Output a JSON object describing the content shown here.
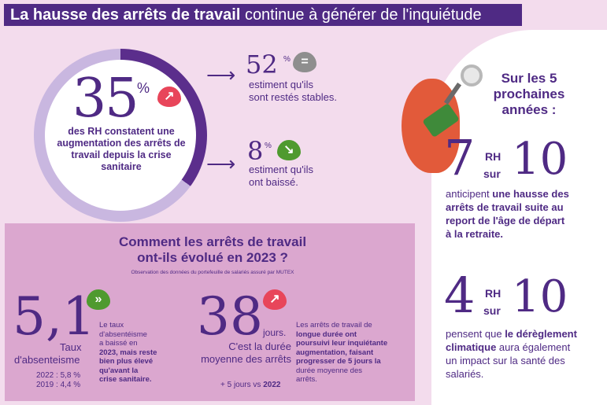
{
  "title": {
    "bold": "La hausse des arrêts de travail",
    "rest": "continue à générer de l'inquiétude"
  },
  "main_stat": {
    "value": "35",
    "unit": "%",
    "text": "des RH constatent une augmentation des arrêts de travail depuis la crise sanitaire",
    "ring_fraction": 0.35
  },
  "stable": {
    "value": "52",
    "unit": "%",
    "text_line1": "estiment qu'ils",
    "text_line2": "sont restés stables.",
    "icon": "equals-icon"
  },
  "lower": {
    "value": "8",
    "unit": "%",
    "text_line1": "estiment qu'ils",
    "text_line2": "ont baissé.",
    "icon": "arrow-down-icon"
  },
  "future": {
    "heading_line1": "Sur les 5",
    "heading_line2": "prochaines",
    "heading_line3": "années :",
    "retraite": {
      "num": "7",
      "rh": "RH",
      "sur": "sur",
      "den": "10",
      "line1_a": "anticipent ",
      "line1_b": "une hausse des",
      "line2": "arrêts de travail suite au",
      "line3": "report de l'âge de départ",
      "line4": "à la retraite."
    },
    "climat": {
      "num": "4",
      "rh": "RH",
      "sur": "sur",
      "den": "10",
      "line1_a": "pensent que ",
      "line1_b": "le dérèglement",
      "line2_b": "climatique",
      "line2_a": " aura également",
      "line3": "un impact sur la santé des",
      "line4": "salariés."
    }
  },
  "panel": {
    "title_line1": "Comment les arrêts de travail",
    "title_line2": "ont-ils évolué en 2023 ?",
    "subtitle": "Observation des données du portefeuille de salariés assuré par MUTEX",
    "absenteeism": {
      "value": "5,1",
      "label1": "Taux",
      "label2": "d'absenteisme",
      "hist1": "2022 : 5,8 %",
      "hist2": "2019 : 4,4 %",
      "desc": [
        "Le taux",
        "d'absentéisme",
        "a baissé en",
        "2023, mais reste",
        "bien plus élevé",
        "qu'avant la",
        "crise sanitaire."
      ]
    },
    "duration": {
      "value": "38",
      "unit": "jours.",
      "label1": "C'est la durée",
      "label2": "moyenne des arrêts",
      "vs_a": "+ 5 jours vs ",
      "vs_b": "2022",
      "desc": [
        "Les arrêts de travail de",
        "longue durée ont",
        "poursuivi leur inquiétante",
        "augmentation, faisant",
        "progresser de 5 jours la",
        "durée moyenne des",
        "arrêts."
      ]
    }
  },
  "colors": {
    "purple": "#4f2a84",
    "pink_bg": "#f3dced",
    "panel": "#dba7cf",
    "red": "#e8455a",
    "green": "#4f9a2f",
    "grey": "#8e8e8e"
  }
}
